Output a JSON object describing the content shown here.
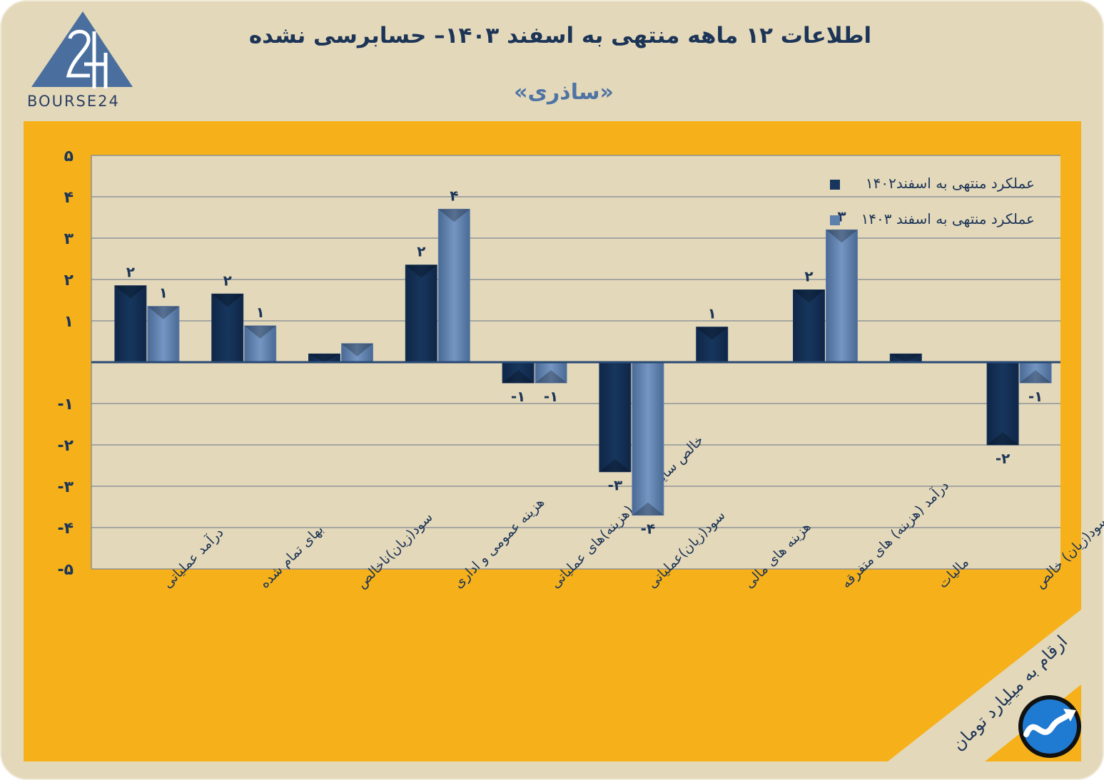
{
  "header": {
    "title": "اطلاعات ۱۲ ماهه منتهی به اسفند ۱۴۰۳– حسابرسی نشده",
    "company": "«ساذری»",
    "logo_text": "BOURSE24"
  },
  "footer": {
    "unit_note": "ارقام به میلیارد تومان"
  },
  "colors": {
    "background": "#e4d8ba",
    "panel": "#f6b11a",
    "plot": "#e4d8ba",
    "series_1402": "#17365d",
    "series_1403": "#5d7fac",
    "text": "#1c3557"
  },
  "icons": [
    "bourse24-logo-icon",
    "trend-arrow-icon"
  ],
  "chart_data": {
    "type": "bar",
    "categories": [
      "درآمد عملیاتی",
      "بهای تمام شده",
      "سود(زیان)ناخالص",
      "هزینه عمومی و اداری",
      "خالص سایر درامد(هزینه)های عملیاتی",
      "سود(زیان)عملیاتی",
      "هزینه های مالی",
      "درآمد (هزینه) های متفرقه",
      "مالیات",
      "سود(زیان) خالص"
    ],
    "series": [
      {
        "name": "عملکرد منتهی به اسفند۱۴۰۲",
        "values": [
          1.85,
          1.65,
          0.2,
          2.35,
          -0.5,
          -2.65,
          0.85,
          1.75,
          0.2,
          -2.0
        ],
        "labels": [
          "۲",
          "۲",
          "",
          "۲",
          "-۱",
          "-۳",
          "۱",
          "۲",
          "",
          "-۲"
        ]
      },
      {
        "name": "عملکرد منتهی به اسفند ۱۴۰۳",
        "values": [
          1.35,
          0.88,
          0.45,
          3.7,
          -0.5,
          -3.7,
          null,
          3.2,
          null,
          -0.5
        ],
        "labels": [
          "۱",
          "۱",
          "",
          "۴",
          "-۱",
          "-۴",
          "",
          "۳",
          "",
          "-۱"
        ]
      }
    ],
    "ylim": [
      -5,
      5
    ],
    "yticks": [
      5,
      4,
      3,
      2,
      1,
      0,
      -1,
      -2,
      -3,
      -4,
      -5
    ],
    "ytick_labels": [
      "۵",
      "۴",
      "۳",
      "۲",
      "۱",
      "",
      "-۱",
      "-۲",
      "-۳",
      "-۴",
      "-۵"
    ],
    "grid": true,
    "legend_position": "top-right"
  }
}
